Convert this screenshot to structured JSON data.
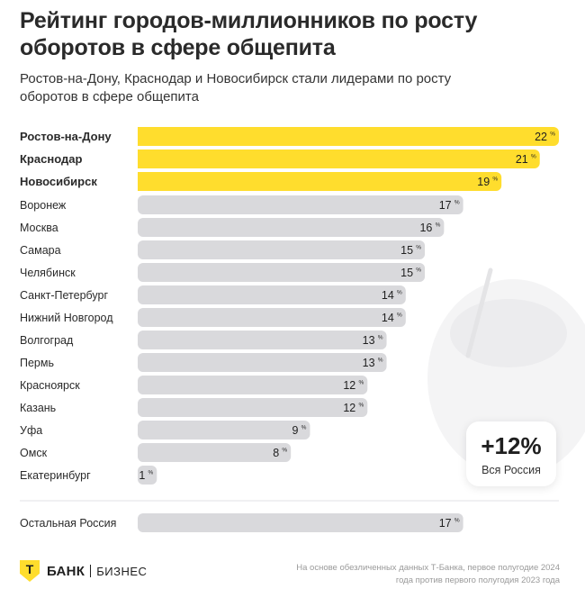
{
  "header": {
    "title": "Рейтинг городов-миллионников по росту оборотов в сфере общепита",
    "subtitle": "Ростов-на-Дону, Краснодар и Новосибирск стали лидерами по росту оборотов в сфере общепита"
  },
  "chart_data": {
    "type": "bar",
    "orientation": "horizontal",
    "title": "Рейтинг городов-миллионников по росту оборотов в сфере общепита",
    "unit": "%",
    "xlim": [
      0,
      22
    ],
    "categories": [
      "Ростов-на-Дону",
      "Краснодар",
      "Новосибирск",
      "Воронеж",
      "Москва",
      "Самара",
      "Челябинск",
      "Санкт-Петербург",
      "Нижний Новгород",
      "Волгоград",
      "Пермь",
      "Красноярск",
      "Казань",
      "Уфа",
      "Омск",
      "Екатеринбург"
    ],
    "values": [
      22,
      21,
      19,
      17,
      16,
      15,
      15,
      14,
      14,
      13,
      13,
      12,
      12,
      9,
      8,
      1
    ],
    "highlighted": [
      "Ростов-на-Дону",
      "Краснодар",
      "Новосибирск"
    ],
    "extra": {
      "label": "Остальная Россия",
      "value": 17
    },
    "colors": {
      "highlight": "#ffdd2d",
      "bar": "#d9d9dc"
    }
  },
  "total": {
    "value": "+12%",
    "label": "Вся Россия"
  },
  "footer": {
    "brand_logo": "Т",
    "brand_name": "БАНК",
    "brand_sub": "БИЗНЕС",
    "note": "На основе обезличенных данных Т-Банка, первое полугодие 2024 года против первого полугодия 2023 года"
  }
}
